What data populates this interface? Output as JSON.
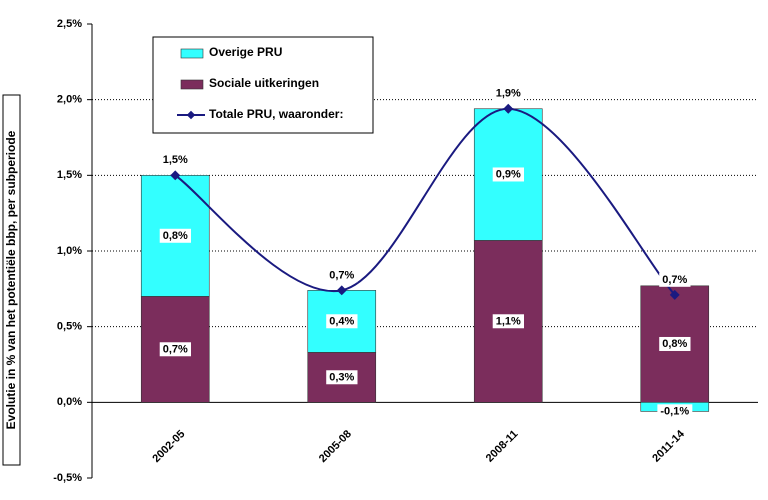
{
  "chart_data": {
    "type": "bar",
    "y_label": "Evolutie in % van het potentiële bbp, per subperiode",
    "categories": [
      "2002-05",
      "2005-08",
      "2008-11",
      "2011-14"
    ],
    "series": [
      {
        "name": "Overige PRU",
        "color": "#33ffff",
        "values": [
          0.8,
          0.41,
          0.87,
          -0.06
        ],
        "value_labels": [
          "0,8%",
          "0,4%",
          "0,9%",
          "-0,1%"
        ]
      },
      {
        "name": "Sociale uitkeringen",
        "color": "#7b2d5c",
        "values": [
          0.7,
          0.33,
          1.07,
          0.77
        ],
        "value_labels": [
          "0,7%",
          "0,3%",
          "1,1%",
          "0,8%"
        ]
      },
      {
        "name": "Totale PRU, waaronder:",
        "type": "line",
        "color": "#1a1a80",
        "values": [
          1.5,
          0.74,
          1.94,
          0.71
        ],
        "value_labels": [
          "1,5%",
          "0,7%",
          "1,9%",
          "0,7%"
        ]
      }
    ],
    "ylim": [
      -0.5,
      2.5
    ],
    "yticks": [
      {
        "value": -0.5,
        "label": "-0,5%"
      },
      {
        "value": 0,
        "label": "0,0%"
      },
      {
        "value": 0.5,
        "label": "0,5%"
      },
      {
        "value": 1,
        "label": "1,0%"
      },
      {
        "value": 1.5,
        "label": "1,5%"
      },
      {
        "value": 2,
        "label": "2,0%"
      },
      {
        "value": 2.5,
        "label": "2,5%"
      }
    ],
    "grid": true,
    "legend": "top-left"
  }
}
